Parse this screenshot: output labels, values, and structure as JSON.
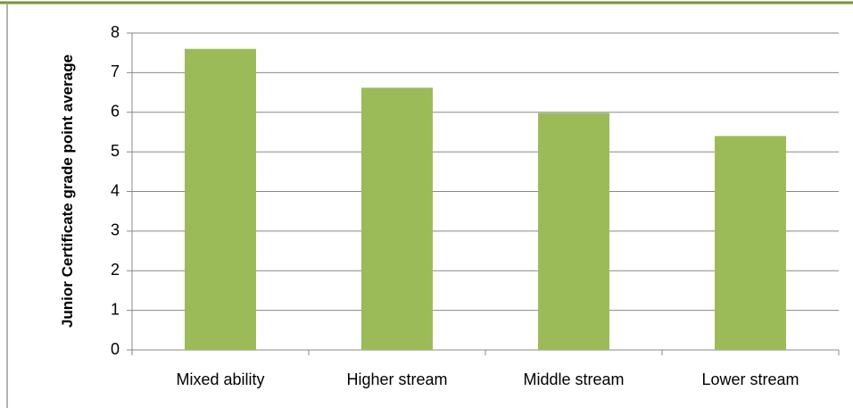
{
  "chart_data": {
    "type": "bar",
    "y_label": "Junior Certificate grade point average",
    "categories": [
      "Mixed ability",
      "Higher stream",
      "Middle stream",
      "Lower stream"
    ],
    "values": [
      7.6,
      6.62,
      5.98,
      5.4
    ],
    "color": "#9bbb59",
    "ylim": [
      0,
      8
    ],
    "yticks": [
      0,
      1,
      2,
      3,
      4,
      5,
      6,
      7,
      8
    ],
    "grid": true
  }
}
